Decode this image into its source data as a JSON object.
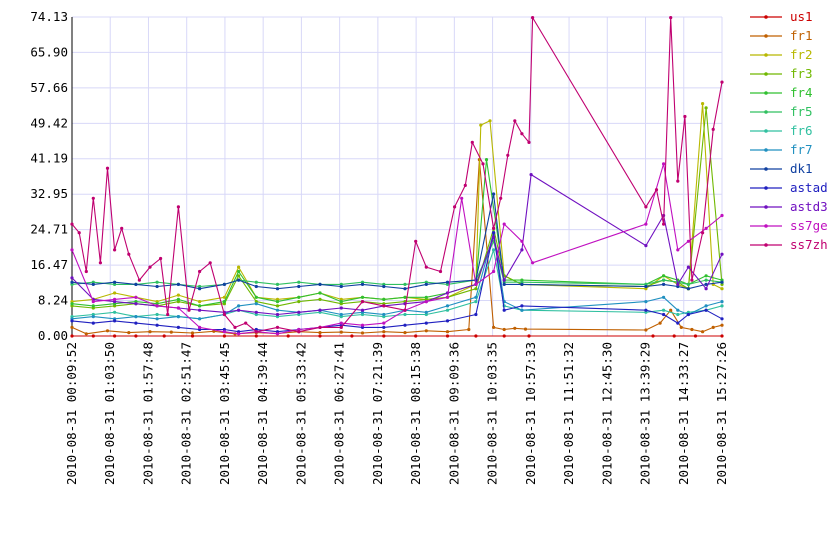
{
  "chart_data": {
    "type": "line",
    "title": "",
    "xlabel": "",
    "ylabel": "",
    "ylim": [
      0,
      74.13
    ],
    "yticks": [
      "0.00",
      "8.24",
      "16.47",
      "24.71",
      "32.95",
      "41.19",
      "49.42",
      "57.66",
      "65.90",
      "74.13"
    ],
    "xticks": [
      "2010-08-31 00:09:52",
      "2010-08-31 01:03:50",
      "2010-08-31 01:57:48",
      "2010-08-31 02:51:47",
      "2010-08-31 03:45:45",
      "2010-08-31 04:39:44",
      "2010-08-31 05:33:42",
      "2010-08-31 06:27:41",
      "2010-08-31 07:21:39",
      "2010-08-31 08:15:38",
      "2010-08-31 09:09:36",
      "2010-08-31 10:03:35",
      "2010-08-31 10:57:33",
      "2010-08-31 11:51:32",
      "2010-08-31 12:45:30",
      "2010-08-31 13:39:29",
      "2010-08-31 14:33:27",
      "2010-08-31 15:27:26"
    ],
    "grid": true,
    "legend": "right",
    "x_range": [
      "2010-08-31 00:09:52",
      "2010-08-31 15:27:26"
    ],
    "series": [
      {
        "name": "us1",
        "color": "#cc0000",
        "x": [
          "00:09:52",
          "00:40:00",
          "01:10:00",
          "01:40:00",
          "02:20:00",
          "03:00:00",
          "03:45:00",
          "04:30:00",
          "05:15:00",
          "06:00:00",
          "06:45:00",
          "07:30:00",
          "08:15:00",
          "09:00:00",
          "09:40:00",
          "10:20:00",
          "10:55:00",
          "13:50:00",
          "14:20:00",
          "14:50:00",
          "15:27:26"
        ],
        "values": [
          0,
          0,
          0,
          0,
          0,
          0,
          0,
          0,
          0,
          0,
          0,
          0,
          0,
          0,
          0,
          0,
          0,
          0,
          0,
          0,
          0
        ]
      },
      {
        "name": "fr1",
        "color": "#c06000",
        "x": [
          "00:09:52",
          "00:30:00",
          "01:00:00",
          "01:30:00",
          "02:00:00",
          "02:30:00",
          "03:00:00",
          "03:30:00",
          "04:00:00",
          "04:30:00",
          "05:00:00",
          "05:30:00",
          "06:00:00",
          "06:30:00",
          "07:00:00",
          "07:30:00",
          "08:00:00",
          "08:30:00",
          "09:00:00",
          "09:30:00",
          "09:45:00",
          "10:05:00",
          "10:20:00",
          "10:35:00",
          "10:50:00",
          "13:40:00",
          "14:00:00",
          "14:15:00",
          "14:30:00",
          "14:45:00",
          "15:00:00",
          "15:15:00",
          "15:27:26"
        ],
        "values": [
          2.0,
          0.5,
          1.2,
          0.8,
          1.0,
          0.9,
          0.7,
          1.1,
          0.5,
          0.8,
          0.6,
          1.0,
          0.8,
          0.9,
          0.7,
          1.0,
          0.8,
          1.2,
          1.0,
          1.5,
          41.0,
          2.0,
          1.5,
          1.8,
          1.6,
          1.4,
          3.0,
          6.0,
          2.0,
          1.5,
          1.0,
          2.0,
          2.5
        ]
      },
      {
        "name": "fr2",
        "color": "#b8b800",
        "x": [
          "00:09:52",
          "00:40:00",
          "01:10:00",
          "01:40:00",
          "02:10:00",
          "02:40:00",
          "03:10:00",
          "03:45:00",
          "04:05:00",
          "04:30:00",
          "05:00:00",
          "05:30:00",
          "06:00:00",
          "06:30:00",
          "07:00:00",
          "07:30:00",
          "08:00:00",
          "08:30:00",
          "09:00:00",
          "09:40:00",
          "09:47:00",
          "10:00:00",
          "10:20:00",
          "10:45:00",
          "13:40:00",
          "14:05:00",
          "14:25:00",
          "14:40:00",
          "15:00:00",
          "15:15:00",
          "15:27:26"
        ],
        "values": [
          8.0,
          8.5,
          10.0,
          9.0,
          8.0,
          9.5,
          8.0,
          9.0,
          16.0,
          9.0,
          8.5,
          9.0,
          10.0,
          8.5,
          9.0,
          8.5,
          9.0,
          8.5,
          9.0,
          12.0,
          49.0,
          50.0,
          14.0,
          12.0,
          11.0,
          14.0,
          12.0,
          11.0,
          54.0,
          12.0,
          11.0
        ]
      },
      {
        "name": "fr3",
        "color": "#70b800",
        "x": [
          "00:09:52",
          "00:40:00",
          "01:10:00",
          "01:40:00",
          "02:10:00",
          "02:40:00",
          "03:10:00",
          "03:45:00",
          "04:05:00",
          "04:30:00",
          "05:00:00",
          "05:30:00",
          "06:00:00",
          "06:30:00",
          "07:00:00",
          "07:30:00",
          "08:00:00",
          "08:30:00",
          "09:00:00",
          "09:40:00",
          "10:05:00",
          "10:20:00",
          "10:45:00",
          "13:40:00",
          "14:05:00",
          "14:25:00",
          "14:40:00",
          "15:05:00",
          "15:27:26"
        ],
        "values": [
          7.0,
          6.5,
          7.0,
          7.5,
          7.0,
          8.0,
          7.0,
          7.5,
          14.0,
          8.0,
          7.0,
          8.0,
          8.5,
          7.5,
          8.0,
          7.5,
          8.0,
          8.5,
          9.0,
          11.0,
          25.0,
          14.0,
          12.0,
          11.5,
          13.0,
          12.5,
          11.0,
          53.0,
          12.0
        ]
      },
      {
        "name": "fr4",
        "color": "#30c030",
        "x": [
          "00:09:52",
          "00:40:00",
          "01:10:00",
          "01:40:00",
          "02:10:00",
          "02:40:00",
          "03:10:00",
          "03:45:00",
          "04:05:00",
          "04:30:00",
          "05:00:00",
          "05:30:00",
          "06:00:00",
          "06:30:00",
          "07:00:00",
          "07:30:00",
          "08:00:00",
          "08:30:00",
          "09:00:00",
          "09:40:00",
          "09:55:00",
          "10:20:00",
          "10:45:00",
          "13:40:00",
          "14:05:00",
          "14:25:00",
          "14:40:00",
          "15:05:00",
          "15:27:26"
        ],
        "values": [
          7.5,
          7.0,
          7.5,
          8.0,
          7.5,
          8.5,
          7.0,
          8.0,
          15.0,
          9.0,
          8.0,
          9.0,
          10.0,
          8.0,
          9.0,
          8.5,
          9.0,
          9.0,
          10.0,
          12.0,
          41.0,
          13.0,
          13.0,
          12.0,
          14.0,
          13.0,
          12.0,
          14.0,
          13.0
        ]
      },
      {
        "name": "fr5",
        "color": "#30c060",
        "x": [
          "00:09:52",
          "00:40:00",
          "01:10:00",
          "01:40:00",
          "02:10:00",
          "02:40:00",
          "03:10:00",
          "03:45:00",
          "04:05:00",
          "04:30:00",
          "05:00:00",
          "05:30:00",
          "06:00:00",
          "06:30:00",
          "07:00:00",
          "07:30:00",
          "08:00:00",
          "08:30:00",
          "09:00:00",
          "09:40:00",
          "10:05:00",
          "10:20:00",
          "10:45:00",
          "13:40:00",
          "14:05:00",
          "14:25:00",
          "14:40:00",
          "15:05:00",
          "15:27:26"
        ],
        "values": [
          12.0,
          12.5,
          12.0,
          12.0,
          12.5,
          12.0,
          11.5,
          12.0,
          13.0,
          12.5,
          12.0,
          12.5,
          12.0,
          12.0,
          12.5,
          12.0,
          12.0,
          12.5,
          12.0,
          13.0,
          22.0,
          12.5,
          12.5,
          12.0,
          13.0,
          12.5,
          12.0,
          13.0,
          12.5
        ]
      },
      {
        "name": "fr6",
        "color": "#30c0a0",
        "x": [
          "00:09:52",
          "00:40:00",
          "01:10:00",
          "01:40:00",
          "02:10:00",
          "02:40:00",
          "03:10:00",
          "03:45:00",
          "04:05:00",
          "04:30:00",
          "05:00:00",
          "05:30:00",
          "06:00:00",
          "06:30:00",
          "07:00:00",
          "07:30:00",
          "08:00:00",
          "08:30:00",
          "09:00:00",
          "09:40:00",
          "10:05:00",
          "10:20:00",
          "10:45:00",
          "13:40:00",
          "14:05:00",
          "14:25:00",
          "14:40:00",
          "15:05:00",
          "15:27:26"
        ],
        "values": [
          4.5,
          5.0,
          5.5,
          4.5,
          5.0,
          4.5,
          4.0,
          5.0,
          6.0,
          5.0,
          4.5,
          5.0,
          5.5,
          4.5,
          5.0,
          4.5,
          5.0,
          5.0,
          6.0,
          8.0,
          20.0,
          7.0,
          6.0,
          5.5,
          6.0,
          5.0,
          5.5,
          6.0,
          7.0
        ]
      },
      {
        "name": "fr7",
        "color": "#2090c0",
        "x": [
          "00:09:52",
          "00:40:00",
          "01:10:00",
          "01:40:00",
          "02:10:00",
          "02:40:00",
          "03:10:00",
          "03:45:00",
          "04:05:00",
          "04:30:00",
          "05:00:00",
          "05:30:00",
          "06:00:00",
          "06:30:00",
          "07:00:00",
          "07:30:00",
          "08:00:00",
          "08:30:00",
          "09:00:00",
          "09:40:00",
          "10:05:00",
          "10:20:00",
          "10:45:00",
          "13:40:00",
          "14:05:00",
          "14:25:00",
          "14:40:00",
          "15:05:00",
          "15:27:26"
        ],
        "values": [
          4.0,
          4.5,
          4.0,
          4.5,
          4.0,
          4.5,
          4.0,
          5.0,
          7.0,
          7.5,
          6.0,
          5.5,
          6.0,
          5.0,
          5.5,
          5.0,
          6.0,
          5.5,
          7.0,
          9.0,
          24.0,
          8.0,
          6.0,
          8.0,
          9.0,
          6.0,
          5.0,
          7.0,
          8.0
        ]
      },
      {
        "name": "dk1",
        "color": "#1040a0",
        "x": [
          "00:09:52",
          "00:40:00",
          "01:10:00",
          "01:40:00",
          "02:10:00",
          "02:40:00",
          "03:10:00",
          "03:45:00",
          "04:05:00",
          "04:30:00",
          "05:00:00",
          "05:30:00",
          "06:00:00",
          "06:30:00",
          "07:00:00",
          "07:30:00",
          "08:00:00",
          "08:30:00",
          "09:00:00",
          "09:40:00",
          "10:05:00",
          "10:20:00",
          "10:45:00",
          "13:40:00",
          "14:05:00",
          "14:25:00",
          "14:40:00",
          "15:05:00",
          "15:27:26"
        ],
        "values": [
          12.5,
          12.0,
          12.5,
          12.0,
          11.5,
          12.0,
          11.0,
          12.0,
          13.0,
          11.5,
          11.0,
          11.5,
          12.0,
          11.5,
          12.0,
          11.5,
          11.0,
          12.0,
          12.5,
          13.0,
          33.0,
          12.0,
          12.0,
          11.5,
          12.0,
          11.5,
          11.0,
          12.0,
          12.5
        ]
      },
      {
        "name": "astad",
        "color": "#2020c0",
        "x": [
          "00:09:52",
          "00:40:00",
          "01:10:00",
          "01:40:00",
          "02:10:00",
          "02:40:00",
          "03:10:00",
          "03:45:00",
          "04:05:00",
          "04:30:00",
          "05:00:00",
          "05:30:00",
          "06:00:00",
          "06:30:00",
          "07:00:00",
          "07:30:00",
          "08:00:00",
          "08:30:00",
          "09:00:00",
          "09:40:00",
          "10:05:00",
          "10:20:00",
          "10:45:00",
          "13:40:00",
          "14:05:00",
          "14:25:00",
          "14:40:00",
          "15:05:00",
          "15:27:26"
        ],
        "values": [
          3.5,
          3.0,
          3.5,
          3.0,
          2.5,
          2.0,
          1.5,
          1.5,
          1.0,
          1.5,
          1.0,
          1.5,
          2.0,
          2.5,
          2.0,
          2.0,
          2.5,
          3.0,
          3.5,
          5.0,
          24.0,
          6.0,
          7.0,
          6.0,
          5.0,
          3.0,
          5.0,
          6.0,
          4.0
        ]
      },
      {
        "name": "astd3",
        "color": "#7010c0",
        "x": [
          "00:09:52",
          "00:40:00",
          "01:10:00",
          "01:40:00",
          "02:10:00",
          "02:40:00",
          "03:10:00",
          "03:45:00",
          "04:05:00",
          "04:30:00",
          "05:00:00",
          "05:30:00",
          "06:00:00",
          "06:30:00",
          "07:00:00",
          "07:30:00",
          "08:00:00",
          "08:30:00",
          "09:00:00",
          "09:40:00",
          "10:05:00",
          "10:20:00",
          "10:45:00",
          "10:58:00",
          "13:40:00",
          "14:05:00",
          "14:25:00",
          "14:40:00",
          "15:05:00",
          "15:27:26"
        ],
        "values": [
          13.5,
          8.5,
          8.0,
          7.5,
          7.0,
          6.5,
          6.0,
          5.5,
          6.0,
          5.5,
          5.0,
          5.5,
          6.0,
          6.5,
          6.0,
          7.0,
          7.5,
          8.0,
          10.0,
          12.0,
          23.0,
          13.0,
          20.0,
          37.5,
          21.0,
          28.0,
          12.0,
          16.0,
          11.0,
          19.0
        ]
      },
      {
        "name": "ss7ge",
        "color": "#c010c0",
        "x": [
          "00:09:52",
          "00:40:00",
          "01:10:00",
          "01:40:00",
          "02:10:00",
          "02:40:00",
          "03:10:00",
          "03:45:00",
          "04:05:00",
          "04:30:00",
          "05:00:00",
          "05:30:00",
          "06:00:00",
          "06:30:00",
          "07:00:00",
          "07:30:00",
          "08:00:00",
          "08:30:00",
          "09:00:00",
          "09:20:00",
          "09:40:00",
          "10:05:00",
          "10:20:00",
          "10:45:00",
          "11:00:00",
          "13:40:00",
          "14:05:00",
          "14:25:00",
          "14:40:00",
          "15:05:00",
          "15:27:26"
        ],
        "values": [
          20.0,
          8.0,
          8.5,
          9.0,
          7.0,
          6.5,
          2.0,
          1.0,
          0.5,
          1.0,
          0.5,
          1.5,
          2.0,
          3.0,
          2.5,
          3.0,
          6.0,
          8.0,
          9.0,
          32.0,
          12.0,
          15.0,
          26.0,
          22.0,
          17.0,
          26.0,
          40.0,
          20.0,
          22.0,
          25.0,
          28.0
        ]
      },
      {
        "name": "ss7zh",
        "color": "#c00070",
        "x": [
          "00:09:52",
          "00:20:00",
          "00:30:00",
          "00:40:00",
          "00:50:00",
          "01:00:00",
          "01:10:00",
          "01:20:00",
          "01:30:00",
          "01:45:00",
          "02:00:00",
          "02:15:00",
          "02:25:00",
          "02:40:00",
          "02:55:00",
          "03:10:00",
          "03:25:00",
          "03:45:00",
          "04:00:00",
          "04:15:00",
          "04:30:00",
          "05:00:00",
          "05:30:00",
          "06:00:00",
          "06:30:00",
          "07:00:00",
          "07:30:00",
          "08:00:00",
          "08:15:00",
          "08:30:00",
          "08:50:00",
          "09:10:00",
          "09:25:00",
          "09:35:00",
          "09:50:00",
          "10:05:00",
          "10:15:00",
          "10:25:00",
          "10:35:00",
          "10:45:00",
          "10:55:00",
          "11:00:00",
          "13:40:00",
          "13:55:00",
          "14:05:00",
          "14:15:00",
          "14:25:00",
          "14:35:00",
          "14:45:00",
          "15:00:00",
          "15:15:00",
          "15:27:26"
        ],
        "values": [
          26.0,
          24.0,
          15.0,
          32.0,
          17.0,
          39.0,
          20.0,
          25.0,
          19.0,
          13.0,
          16.0,
          18.0,
          5.0,
          30.0,
          6.0,
          15.0,
          17.0,
          5.0,
          2.0,
          3.0,
          1.0,
          2.0,
          1.0,
          2.0,
          2.0,
          8.0,
          7.0,
          6.0,
          22.0,
          16.0,
          15.0,
          30.0,
          35.0,
          45.0,
          40.0,
          25.0,
          32.0,
          42.0,
          50.0,
          47.0,
          45.0,
          74.0,
          30.0,
          34.0,
          26.0,
          74.0,
          36.0,
          51.0,
          13.0,
          24.0,
          48.0,
          59.0
        ]
      }
    ]
  }
}
